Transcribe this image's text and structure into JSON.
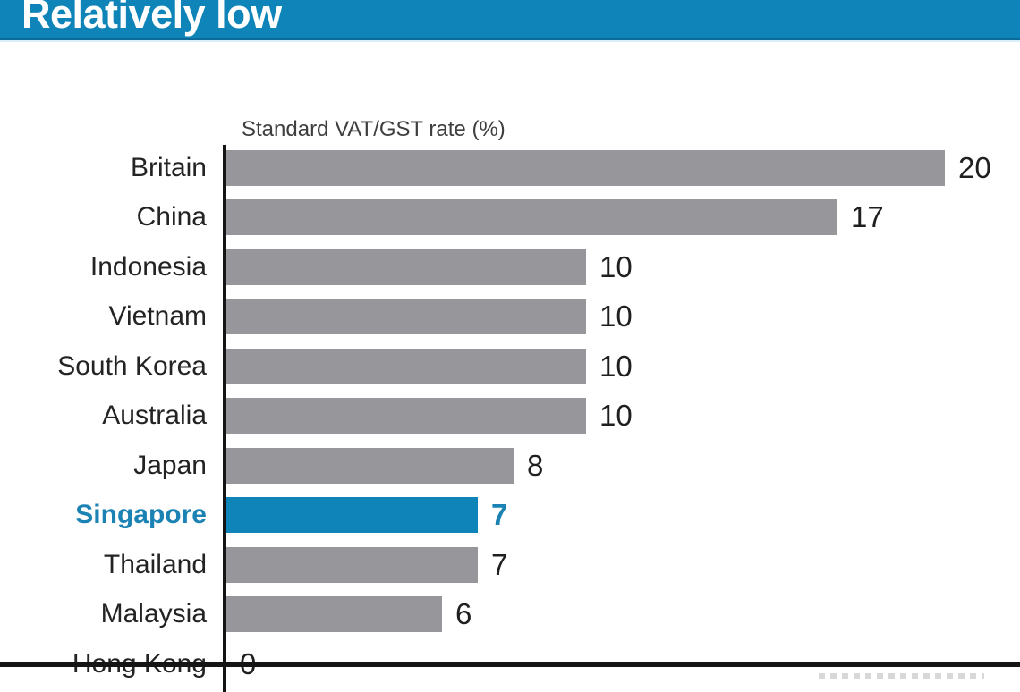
{
  "banner": {
    "title": "Relatively low"
  },
  "colors": {
    "banner_blue": "#0f84b8",
    "banner_dark_edge": "#0c6b99",
    "bar_gray": "#97979b",
    "highlight_blue": "#0f84b8",
    "highlight_text": "#1b82b4",
    "axis_black": "#141414"
  },
  "chart_data": {
    "type": "bar",
    "orientation": "horizontal",
    "axis_title": "Standard VAT/GST rate (%)",
    "categories": [
      "Britain",
      "China",
      "Indonesia",
      "Vietnam",
      "South Korea",
      "Australia",
      "Japan",
      "Singapore",
      "Thailand",
      "Malaysia",
      "Hong Kong"
    ],
    "values": [
      20,
      17,
      10,
      10,
      10,
      10,
      8,
      7,
      7,
      6,
      0
    ],
    "highlight_category": "Singapore",
    "xlim": [
      0,
      20
    ],
    "value_labels_shown": true,
    "grid": false,
    "legend": false
  }
}
